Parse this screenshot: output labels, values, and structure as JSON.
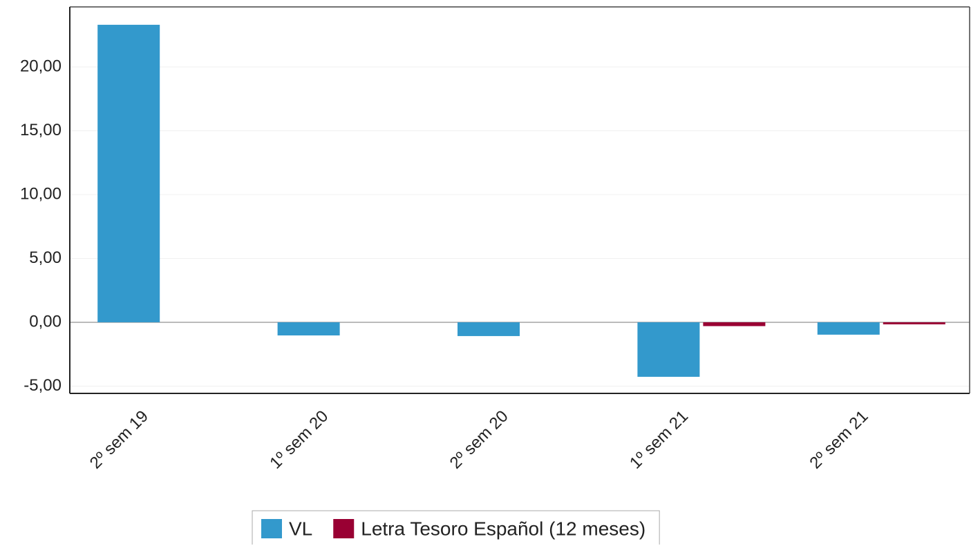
{
  "chart_data": {
    "type": "bar",
    "categories": [
      "2º sem 19",
      "1º sem 20",
      "2º sem 20",
      "1º sem 21",
      "2º sem 21"
    ],
    "series": [
      {
        "name": "VL",
        "color": "#3399cc",
        "values": [
          23.3,
          -1.03,
          -1.08,
          -4.27,
          -0.97
        ]
      },
      {
        "name": "Letra Tesoro Español (12 meses)",
        "color": "#990033",
        "values": [
          null,
          null,
          null,
          -0.3,
          -0.16
        ]
      }
    ],
    "ylim": [
      -5.57,
      24.7
    ],
    "yticks": [
      {
        "value": -5,
        "label": "-5,00"
      },
      {
        "value": 0,
        "label": "0,00"
      },
      {
        "value": 5,
        "label": "5,00"
      },
      {
        "value": 10,
        "label": "10,00"
      },
      {
        "value": 15,
        "label": "15,00"
      },
      {
        "value": 20,
        "label": "20,00"
      }
    ],
    "grid": true,
    "legend": "bottom"
  }
}
